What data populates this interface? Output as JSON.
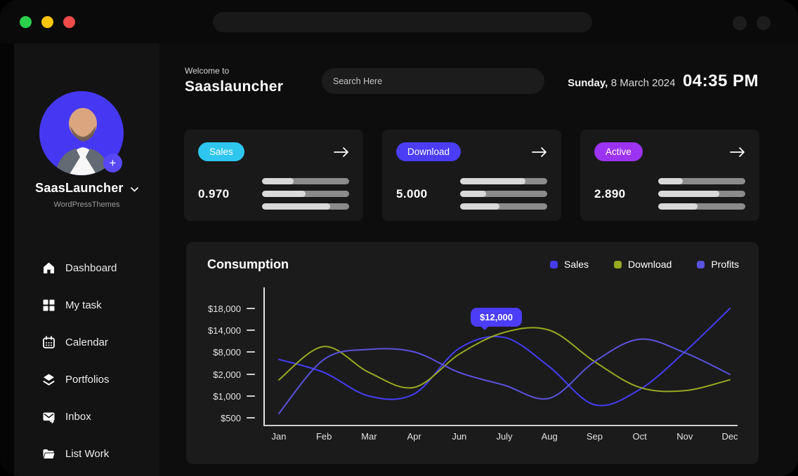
{
  "window": {
    "traffic_lights": {
      "green": "#2bd14b",
      "yellow": "#fdc60a",
      "red": "#ef4b4b"
    }
  },
  "sidebar": {
    "profile": {
      "name": "SaasLauncher",
      "subtitle": "WordPressThemes",
      "avatar_bg": "#4638f2"
    },
    "items": [
      {
        "label": "Dashboard",
        "icon": "home-icon"
      },
      {
        "label": "My task",
        "icon": "grid-icon"
      },
      {
        "label": "Calendar",
        "icon": "calendar-icon"
      },
      {
        "label": "Portfolios",
        "icon": "layers-icon"
      },
      {
        "label": "Inbox",
        "icon": "envelope-icon"
      },
      {
        "label": "List Work",
        "icon": "folder-icon"
      }
    ]
  },
  "header": {
    "welcome_small": "Welcome to",
    "welcome_title": "Saaslauncher",
    "search_placeholder": "Search Here",
    "date_day": "Sunday,",
    "date_rest": "8 March 2024",
    "time": "04:35 PM"
  },
  "stats": {
    "cards": [
      {
        "label": "Sales",
        "value": "0.970",
        "badge_color": "#2ec6ef",
        "bars": [
          36,
          50,
          78
        ]
      },
      {
        "label": "Download",
        "value": "5.000",
        "badge_color": "#4b3df6",
        "bars": [
          75,
          30,
          45
        ]
      },
      {
        "label": "Active",
        "value": "2.890",
        "badge_color": "#9d33f2",
        "bars": [
          28,
          70,
          45
        ]
      }
    ]
  },
  "chart_data": {
    "type": "line",
    "title": "Consumption",
    "x": [
      "Jan",
      "Feb",
      "Mar",
      "Apr",
      "Jun",
      "July",
      "Aug",
      "Sep",
      "Oct",
      "Nov",
      "Dec"
    ],
    "y_tick_labels": [
      "$18,000",
      "$14,000",
      "$8,000",
      "$2,000",
      "$1,000",
      "$500"
    ],
    "y_tick_values": [
      18000,
      14000,
      8000,
      2000,
      1000,
      500
    ],
    "grid": false,
    "legend_position": "top-right",
    "series": [
      {
        "name": "Sales",
        "color": "#463cf5",
        "values": [
          6000,
          2500,
          1000,
          1100,
          9000,
          12000,
          4000,
          800,
          1300,
          8000,
          18000
        ]
      },
      {
        "name": "Download",
        "color": "#98a822",
        "values": [
          1750,
          9500,
          2500,
          1400,
          7400,
          13400,
          14000,
          5400,
          1400,
          1250,
          1750
        ]
      },
      {
        "name": "Profits",
        "color": "#5b52dd",
        "values": [
          600,
          6000,
          8700,
          8000,
          2500,
          1500,
          950,
          5400,
          11500,
          7800,
          2000
        ]
      }
    ],
    "tooltip": {
      "label": "$12,000",
      "series": "Sales",
      "month": "July"
    }
  }
}
